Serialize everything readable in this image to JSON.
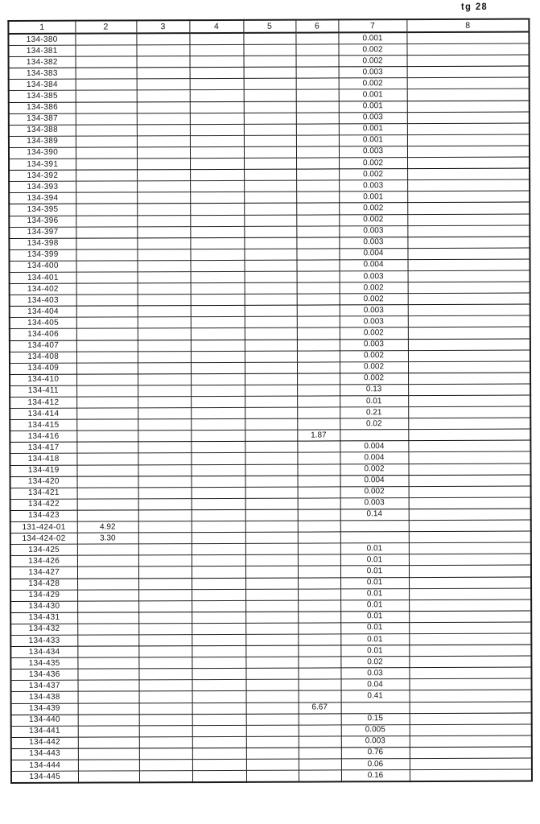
{
  "page": {
    "corner_label": "tg 28"
  },
  "colors": {
    "ink": "#151515",
    "paper": "#ffffff",
    "line": "#1b1b1b"
  },
  "table": {
    "columns": [
      "1",
      "2",
      "3",
      "4",
      "5",
      "6",
      "7",
      "8"
    ],
    "rows": [
      [
        "134-380",
        "",
        "",
        "",
        "",
        "",
        "0.001",
        ""
      ],
      [
        "134-381",
        "",
        "",
        "",
        "",
        "",
        "0.002",
        ""
      ],
      [
        "134-382",
        "",
        "",
        "",
        "",
        "",
        "0.002",
        ""
      ],
      [
        "134-383",
        "",
        "",
        "",
        "",
        "",
        "0.003",
        ""
      ],
      [
        "134-384",
        "",
        "",
        "",
        "",
        "",
        "0.002",
        ""
      ],
      [
        "134-385",
        "",
        "",
        "",
        "",
        "",
        "0.001",
        ""
      ],
      [
        "134-386",
        "",
        "",
        "",
        "",
        "",
        "0.001",
        ""
      ],
      [
        "134-387",
        "",
        "",
        "",
        "",
        "",
        "0.003",
        ""
      ],
      [
        "134-388",
        "",
        "",
        "",
        "",
        "",
        "0.001",
        ""
      ],
      [
        "134-389",
        "",
        "",
        "",
        "",
        "",
        "0.001",
        ""
      ],
      [
        "134-390",
        "",
        "",
        "",
        "",
        "",
        "0.003",
        ""
      ],
      [
        "134-391",
        "",
        "",
        "",
        "",
        "",
        "0.002",
        ""
      ],
      [
        "134-392",
        "",
        "",
        "",
        "",
        "",
        "0.002",
        ""
      ],
      [
        "134-393",
        "",
        "",
        "",
        "",
        "",
        "0.003",
        ""
      ],
      [
        "134-394",
        "",
        "",
        "",
        "",
        "",
        "0.001",
        ""
      ],
      [
        "134-395",
        "",
        "",
        "",
        "",
        "",
        "0.002",
        ""
      ],
      [
        "134-396",
        "",
        "",
        "",
        "",
        "",
        "0.002",
        ""
      ],
      [
        "134-397",
        "",
        "",
        "",
        "",
        "",
        "0.003",
        ""
      ],
      [
        "134-398",
        "",
        "",
        "",
        "",
        "",
        "0.003",
        ""
      ],
      [
        "134-399",
        "",
        "",
        "",
        "",
        "",
        "0.004",
        ""
      ],
      [
        "134-400",
        "",
        "",
        "",
        "",
        "",
        "0.004",
        ""
      ],
      [
        "134-401",
        "",
        "",
        "",
        "",
        "",
        "0.003",
        ""
      ],
      [
        "134-402",
        "",
        "",
        "",
        "",
        "",
        "0.002",
        ""
      ],
      [
        "134-403",
        "",
        "",
        "",
        "",
        "",
        "0.002",
        ""
      ],
      [
        "134-404",
        "",
        "",
        "",
        "",
        "",
        "0.003",
        ""
      ],
      [
        "134-405",
        "",
        "",
        "",
        "",
        "",
        "0.003",
        ""
      ],
      [
        "134-406",
        "",
        "",
        "",
        "",
        "",
        "0.002",
        ""
      ],
      [
        "134-407",
        "",
        "",
        "",
        "",
        "",
        "0.003",
        ""
      ],
      [
        "134-408",
        "",
        "",
        "",
        "",
        "",
        "0.002",
        ""
      ],
      [
        "134-409",
        "",
        "",
        "",
        "",
        "",
        "0.002",
        ""
      ],
      [
        "134-410",
        "",
        "",
        "",
        "",
        "",
        "0.002",
        ""
      ],
      [
        "134-411",
        "",
        "",
        "",
        "",
        "",
        "0.13",
        ""
      ],
      [
        "134-412",
        "",
        "",
        "",
        "",
        "",
        "0.01",
        ""
      ],
      [
        "134-414",
        "",
        "",
        "",
        "",
        "",
        "0.21",
        ""
      ],
      [
        "134-415",
        "",
        "",
        "",
        "",
        "",
        "0.02",
        ""
      ],
      [
        "134-416",
        "",
        "",
        "",
        "",
        "1.87",
        "",
        ""
      ],
      [
        "134-417",
        "",
        "",
        "",
        "",
        "",
        "0.004",
        ""
      ],
      [
        "134-418",
        "",
        "",
        "",
        "",
        "",
        "0.004",
        ""
      ],
      [
        "134-419",
        "",
        "",
        "",
        "",
        "",
        "0.002",
        ""
      ],
      [
        "134-420",
        "",
        "",
        "",
        "",
        "",
        "0.004",
        ""
      ],
      [
        "134-421",
        "",
        "",
        "",
        "",
        "",
        "0.002",
        ""
      ],
      [
        "134-422",
        "",
        "",
        "",
        "",
        "",
        "0.003",
        ""
      ],
      [
        "134-423",
        "",
        "",
        "",
        "",
        "",
        "0.14",
        ""
      ],
      [
        "131-424-01",
        "4.92",
        "",
        "",
        "",
        "",
        "",
        ""
      ],
      [
        "134-424-02",
        "3.30",
        "",
        "",
        "",
        "",
        "",
        ""
      ],
      [
        "134-425",
        "",
        "",
        "",
        "",
        "",
        "0.01",
        ""
      ],
      [
        "134-426",
        "",
        "",
        "",
        "",
        "",
        "0.01",
        ""
      ],
      [
        "134-427",
        "",
        "",
        "",
        "",
        "",
        "0.01",
        ""
      ],
      [
        "134-428",
        "",
        "",
        "",
        "",
        "",
        "0.01",
        ""
      ],
      [
        "134-429",
        "",
        "",
        "",
        "",
        "",
        "0.01",
        ""
      ],
      [
        "134-430",
        "",
        "",
        "",
        "",
        "",
        "0.01",
        ""
      ],
      [
        "134-431",
        "",
        "",
        "",
        "",
        "",
        "0.01",
        ""
      ],
      [
        "134-432",
        "",
        "",
        "",
        "",
        "",
        "0.01",
        ""
      ],
      [
        "134-433",
        "",
        "",
        "",
        "",
        "",
        "0.01",
        ""
      ],
      [
        "134-434",
        "",
        "",
        "",
        "",
        "",
        "0.01",
        ""
      ],
      [
        "134-435",
        "",
        "",
        "",
        "",
        "",
        "0.02",
        ""
      ],
      [
        "134-436",
        "",
        "",
        "",
        "",
        "",
        "0.03",
        ""
      ],
      [
        "134-437",
        "",
        "",
        "",
        "",
        "",
        "0.04",
        ""
      ],
      [
        "134-438",
        "",
        "",
        "",
        "",
        "",
        "0.41",
        ""
      ],
      [
        "134-439",
        "",
        "",
        "",
        "",
        "6.67",
        "",
        ""
      ],
      [
        "134-440",
        "",
        "",
        "",
        "",
        "",
        "0.15",
        ""
      ],
      [
        "134-441",
        "",
        "",
        "",
        "",
        "",
        "0.005",
        ""
      ],
      [
        "134-442",
        "",
        "",
        "",
        "",
        "",
        "0.003",
        ""
      ],
      [
        "134-443",
        "",
        "",
        "",
        "",
        "",
        "0.76",
        ""
      ],
      [
        "134-444",
        "",
        "",
        "",
        "",
        "",
        "0.06",
        ""
      ],
      [
        "134-445",
        "",
        "",
        "",
        "",
        "",
        "0.16",
        ""
      ]
    ]
  }
}
